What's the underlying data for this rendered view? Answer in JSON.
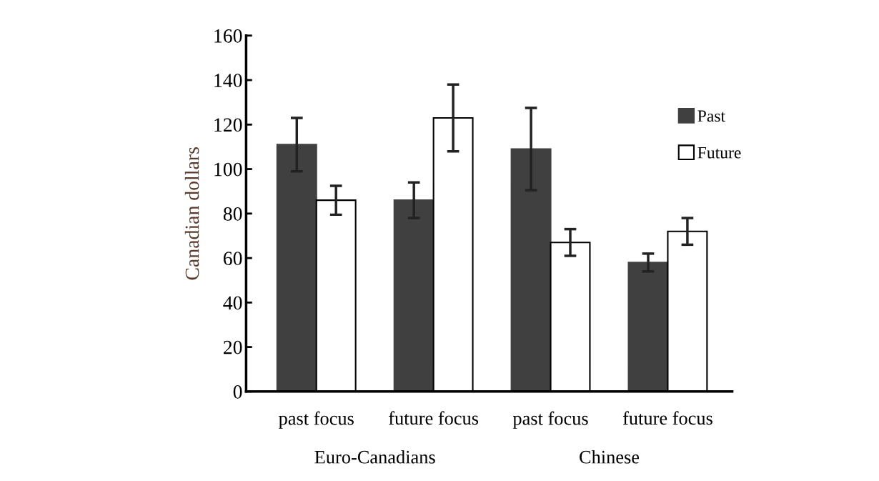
{
  "chart_data": {
    "type": "bar",
    "ylabel": "Canadian dollars",
    "categories": [
      "past focus",
      "future focus",
      "past focus",
      "future focus"
    ],
    "series": [
      {
        "name": "Past",
        "color": "#404040",
        "values": [
          111,
          86,
          109,
          58
        ],
        "errors": [
          12,
          8,
          18.5,
          4
        ]
      },
      {
        "name": "Future",
        "color": "#ffffff",
        "values": [
          86,
          123,
          67,
          72
        ],
        "errors": [
          6.5,
          15,
          6,
          6
        ]
      }
    ],
    "annotations": [
      "Euro-Canadians",
      "Chinese"
    ],
    "ylim": [
      0,
      160
    ],
    "yticks": [
      0,
      20,
      40,
      60,
      80,
      100,
      120,
      140,
      160
    ],
    "grid": false,
    "legend": "right"
  }
}
